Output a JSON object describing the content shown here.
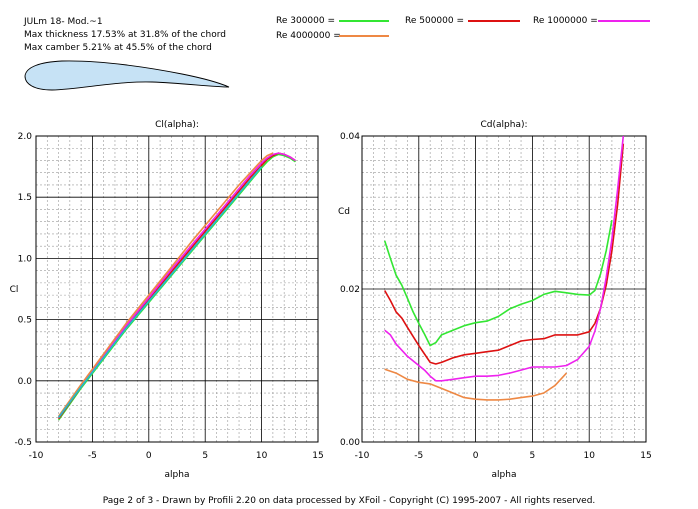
{
  "header": {
    "airfoil_name": "JULm 18- Mod.~1",
    "thickness_line": "Max thickness 17.53% at 31.8% of the chord",
    "camber_line": "Max camber 5.21% at 45.5% of the chord"
  },
  "legend": {
    "items": [
      {
        "label": "Re 300000 =",
        "color": "#33e633"
      },
      {
        "label": "Re 500000 =",
        "color": "#dd1111"
      },
      {
        "label": "Re 1000000 =",
        "color": "#ee22ee"
      },
      {
        "label": "Re 4000000 =",
        "color": "#ee8844"
      }
    ]
  },
  "airfoil_colors": {
    "fill": "#c6e2f5",
    "stroke": "#000000"
  },
  "footer": "Page 2 of 3  -  Drawn by Profili 2.20 on data processed by  XFoil - Copyright (C) 1995-2007 - All rights reserved.",
  "chart_data": [
    {
      "type": "line",
      "title": "Cl(alpha):",
      "xlabel": "alpha",
      "ylabel": "Cl",
      "xlim": [
        -10,
        15
      ],
      "ylim": [
        -0.5,
        2.0
      ],
      "xticks": [
        "-10",
        "-5",
        "0",
        "5",
        "10",
        "15"
      ],
      "yticks": [
        "-0.5",
        "0.0",
        "0.5",
        "1.0",
        "1.5",
        "2.0"
      ],
      "grid": true,
      "series": [
        {
          "name": "Re 300000",
          "color": "#33e633",
          "x": [
            -8,
            -6,
            -4,
            -2,
            0,
            2,
            4,
            6,
            8,
            9,
            10,
            10.5,
            11,
            11.5,
            12,
            12.5,
            13
          ],
          "y": [
            -0.32,
            -0.06,
            0.18,
            0.42,
            0.64,
            0.86,
            1.08,
            1.3,
            1.52,
            1.63,
            1.74,
            1.79,
            1.83,
            1.85,
            1.84,
            1.82,
            1.79
          ]
        },
        {
          "name": "Re 500000",
          "color": "#dd1111",
          "x": [
            -8,
            -6,
            -4,
            -2,
            0,
            2,
            4,
            6,
            8,
            9,
            10,
            10.5,
            11,
            11.5,
            12,
            12.5,
            13
          ],
          "y": [
            -0.31,
            -0.05,
            0.2,
            0.44,
            0.66,
            0.89,
            1.11,
            1.33,
            1.55,
            1.66,
            1.76,
            1.81,
            1.84,
            1.86,
            1.85,
            1.83,
            1.8
          ]
        },
        {
          "name": "Re 1000000",
          "color": "#ee22ee",
          "x": [
            -8,
            -6,
            -4,
            -2,
            0,
            2,
            4,
            6,
            8,
            9,
            10,
            10.5,
            11,
            11.5,
            12,
            12.5,
            13
          ],
          "y": [
            -0.3,
            -0.04,
            0.21,
            0.45,
            0.68,
            0.91,
            1.13,
            1.35,
            1.57,
            1.68,
            1.78,
            1.82,
            1.85,
            1.86,
            1.85,
            1.83,
            1.8
          ]
        },
        {
          "name": "Re 4000000",
          "color": "#ee8844",
          "x": [
            -8,
            -6,
            -4,
            -2,
            0,
            2,
            4,
            6,
            8,
            9,
            10,
            10.5,
            11
          ],
          "y": [
            -0.29,
            -0.03,
            0.22,
            0.47,
            0.7,
            0.93,
            1.16,
            1.38,
            1.6,
            1.7,
            1.8,
            1.84,
            1.86
          ]
        },
        {
          "name": "",
          "color": "#22bbcc",
          "x": [
            -8,
            -6,
            -4,
            -2,
            0,
            2,
            4,
            6,
            8,
            9,
            10
          ],
          "y": [
            -0.3,
            -0.05,
            0.19,
            0.43,
            0.65,
            0.87,
            1.09,
            1.31,
            1.53,
            1.64,
            1.75
          ]
        }
      ]
    },
    {
      "type": "line",
      "title": "Cd(alpha):",
      "xlabel": "alpha",
      "ylabel": "Cd",
      "xlim": [
        -10,
        15
      ],
      "ylim": [
        0.0,
        0.04
      ],
      "xticks": [
        "-10",
        "-5",
        "0",
        "5",
        "10",
        "15"
      ],
      "yticks": [
        "0.00",
        "0.02",
        "0.04"
      ],
      "grid": true,
      "series": [
        {
          "name": "Re 300000",
          "color": "#33e633",
          "x": [
            -8,
            -7.5,
            -7,
            -6.5,
            -6,
            -5.5,
            -5,
            -4.5,
            -4,
            -3.5,
            -3,
            -2,
            -1,
            0,
            1,
            2,
            3,
            4,
            5,
            6,
            7,
            8,
            9,
            10,
            10.5,
            11,
            11.5,
            12
          ],
          "y": [
            0.0263,
            0.024,
            0.0218,
            0.0205,
            0.0188,
            0.017,
            0.0155,
            0.0141,
            0.0126,
            0.013,
            0.014,
            0.0146,
            0.0152,
            0.0156,
            0.0158,
            0.0164,
            0.0174,
            0.018,
            0.0185,
            0.0193,
            0.0197,
            0.0195,
            0.0193,
            0.0192,
            0.0198,
            0.022,
            0.025,
            0.029
          ]
        },
        {
          "name": "Re 500000",
          "color": "#dd1111",
          "x": [
            -8,
            -7.5,
            -7,
            -6.5,
            -6,
            -5.5,
            -5,
            -4.5,
            -4,
            -3.5,
            -3,
            -2,
            -1,
            0,
            1,
            2,
            3,
            4,
            5,
            6,
            7,
            8,
            9,
            10,
            10.5,
            11,
            11.5,
            12,
            12.5,
            13
          ],
          "y": [
            0.0198,
            0.0185,
            0.017,
            0.0162,
            0.015,
            0.0138,
            0.0126,
            0.0115,
            0.0104,
            0.0102,
            0.0104,
            0.011,
            0.0114,
            0.0116,
            0.0118,
            0.012,
            0.0126,
            0.0132,
            0.0134,
            0.0135,
            0.014,
            0.014,
            0.014,
            0.0144,
            0.0155,
            0.0175,
            0.0205,
            0.025,
            0.031,
            0.039
          ]
        },
        {
          "name": "Re 1000000",
          "color": "#ee22ee",
          "x": [
            -8,
            -7.5,
            -7,
            -6.5,
            -6,
            -5.5,
            -5,
            -4.5,
            -4,
            -3.5,
            -3,
            -2,
            -1,
            0,
            1,
            2,
            3,
            4,
            5,
            6,
            7,
            8,
            9,
            10,
            10.5,
            11,
            11.5,
            12,
            12.5,
            13
          ],
          "y": [
            0.0146,
            0.014,
            0.0128,
            0.012,
            0.0112,
            0.0106,
            0.01,
            0.0094,
            0.0086,
            0.008,
            0.008,
            0.0082,
            0.0084,
            0.0086,
            0.0086,
            0.0087,
            0.009,
            0.0094,
            0.0098,
            0.0098,
            0.0098,
            0.01,
            0.0108,
            0.0125,
            0.0145,
            0.0175,
            0.0215,
            0.0265,
            0.033,
            0.04
          ]
        },
        {
          "name": "Re 4000000",
          "color": "#ee8844",
          "x": [
            -8,
            -7,
            -6,
            -5,
            -4,
            -3,
            -2,
            -1,
            0,
            1,
            2,
            3,
            4,
            5,
            6,
            7,
            8
          ],
          "y": [
            0.0095,
            0.009,
            0.0082,
            0.0078,
            0.0076,
            0.007,
            0.0064,
            0.0058,
            0.0056,
            0.0055,
            0.0055,
            0.0056,
            0.0058,
            0.006,
            0.0064,
            0.0074,
            0.009
          ]
        }
      ]
    }
  ]
}
